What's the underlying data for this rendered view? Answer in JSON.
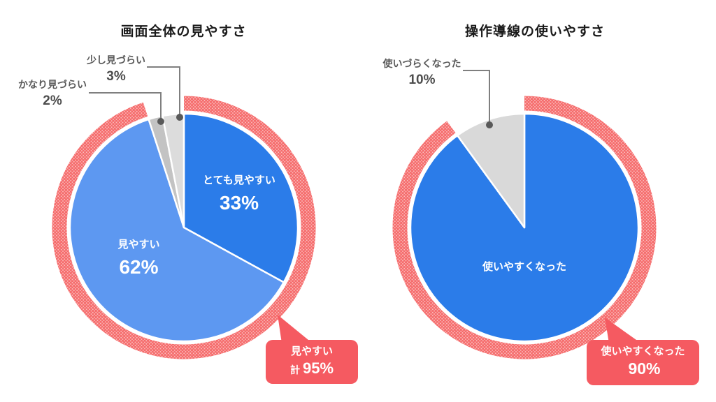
{
  "page": {
    "background": "#ffffff"
  },
  "chart_data": [
    {
      "type": "pie",
      "title": "画面全体の見やすさ",
      "unit": "%",
      "start_angle_deg": 0,
      "direction": "clockwise",
      "slices": [
        {
          "label": "とても見やすい",
          "value": 33,
          "color": "#2b7ce9",
          "label_color": "#ffffff"
        },
        {
          "label": "見やすい",
          "value": 62,
          "color": "#5d98f1",
          "label_color": "#ffffff"
        },
        {
          "label": "かなり見づらい",
          "value": 2,
          "color": "#c3c3c3",
          "label_color": "#595959"
        },
        {
          "label": "少し見づらい",
          "value": 3,
          "color": "#dcdcdc",
          "label_color": "#595959"
        }
      ],
      "inner_labels": [
        {
          "text": "とても見やすい",
          "pct": "33%"
        },
        {
          "text": "見やすい",
          "pct": "62%"
        }
      ],
      "callouts": [
        {
          "text": "かなり見づらい",
          "pct": "2%"
        },
        {
          "text": "少し見づらい",
          "pct": "3%"
        }
      ],
      "highlight_arc": {
        "coverage_pct": 95,
        "color": "#f56b6b",
        "dot_color": "#ffffff"
      },
      "badge": {
        "line1": "見やすい",
        "prefix": "計",
        "value": "95%",
        "color": "#f55a61",
        "text_color": "#ffffff"
      }
    },
    {
      "type": "pie",
      "title": "操作導線の使いやすさ",
      "unit": "%",
      "start_angle_deg": 0,
      "direction": "clockwise",
      "slices": [
        {
          "label": "使いやすくなった",
          "value": 90,
          "color": "#2b7ce9",
          "label_color": "#ffffff"
        },
        {
          "label": "使いづらくなった",
          "value": 10,
          "color": "#d9d9d9",
          "label_color": "#595959"
        }
      ],
      "inner_labels": [
        {
          "text": "使いやすくなった",
          "pct": ""
        }
      ],
      "callouts": [
        {
          "text": "使いづらくなった",
          "pct": "10%"
        }
      ],
      "highlight_arc": {
        "coverage_pct": 90,
        "color": "#f56b6b",
        "dot_color": "#ffffff"
      },
      "badge": {
        "line1": "使いやすくなった",
        "prefix": "",
        "value": "90%",
        "color": "#f55a61",
        "text_color": "#ffffff"
      }
    }
  ]
}
